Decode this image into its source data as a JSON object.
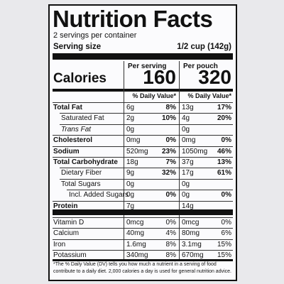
{
  "label": {
    "title": "Nutrition Facts",
    "servings": "2 servings per container",
    "serving_size_label": "Serving size",
    "serving_size": "1/2 cup (142g)",
    "per_serving": "Per serving",
    "per_pouch": "Per pouch",
    "calories_label": "Calories",
    "calories_serving": "160",
    "calories_pouch": "320",
    "dv_header": "% Daily Value*",
    "nutrients": [
      {
        "name": "Total Fat",
        "serving": "6g",
        "serving_dv": "8%",
        "pouch": "13g",
        "pouch_dv": "17%"
      },
      {
        "name": "Saturated Fat",
        "serving": "2g",
        "serving_dv": "10%",
        "pouch": "4g",
        "pouch_dv": "20%"
      },
      {
        "name": "Trans Fat",
        "serving": "0g",
        "pouch": "0g"
      },
      {
        "name": "Cholesterol",
        "serving": "0mg",
        "serving_dv": "0%",
        "pouch": "0mg",
        "pouch_dv": "0%"
      },
      {
        "name": "Sodium",
        "serving": "520mg",
        "serving_dv": "23%",
        "pouch": "1050mg",
        "pouch_dv": "46%"
      },
      {
        "name": "Total Carbohydrate",
        "serving": "18g",
        "serving_dv": "7%",
        "pouch": "37g",
        "pouch_dv": "13%"
      },
      {
        "name": "Dietary Fiber",
        "serving": "9g",
        "serving_dv": "32%",
        "pouch": "17g",
        "pouch_dv": "61%"
      },
      {
        "name": "Total Sugars",
        "serving": "0g",
        "pouch": "0g"
      },
      {
        "name": "Incl. Added Sugars",
        "serving": "0g",
        "serving_dv": "0%",
        "pouch": "0g",
        "pouch_dv": "0%"
      },
      {
        "name": "Protein",
        "serving": "7g",
        "pouch": "14g"
      }
    ],
    "vitamins": [
      {
        "name": "Vitamin D",
        "serving": "0mcg",
        "serving_dv": "0%",
        "pouch": "0mcg",
        "pouch_dv": "0%"
      },
      {
        "name": "Calcium",
        "serving": "40mg",
        "serving_dv": "4%",
        "pouch": "80mg",
        "pouch_dv": "6%"
      },
      {
        "name": "Iron",
        "serving": "1.6mg",
        "serving_dv": "8%",
        "pouch": "3.1mg",
        "pouch_dv": "15%"
      },
      {
        "name": "Potassium",
        "serving": "340mg",
        "serving_dv": "8%",
        "pouch": "670mg",
        "pouch_dv": "15%"
      }
    ],
    "footnote": "*The % Daily Value (DV) tells you how much a nutrient in a serving of food contribute to a daily diet. 2,000 calories a day is used for general nutrition advice."
  }
}
